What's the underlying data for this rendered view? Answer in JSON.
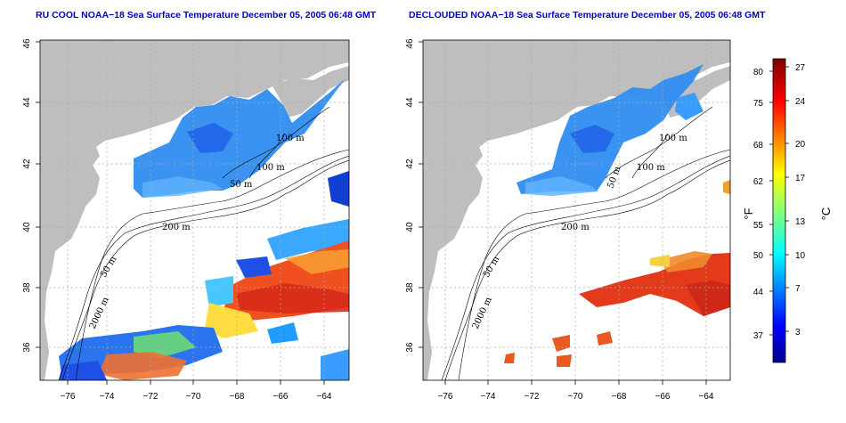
{
  "panels": [
    {
      "title": "RU COOL NOAA−18 Sea Surface Temperature December 05, 2005 06:48 GMT",
      "contour_labels": [
        "100 m",
        "100 m",
        "50 m",
        "200 m",
        "50 m",
        "2000 m"
      ]
    },
    {
      "title": "DECLOUDED NOAA−18 Sea Surface Temperature December 05, 2005 06:48 GMT",
      "contour_labels": [
        "100 m",
        "100 m",
        "50 m",
        "200 m",
        "50 m",
        "2000 m"
      ]
    }
  ],
  "axes": {
    "lon_ticks": [
      "−76",
      "−74",
      "−72",
      "−70",
      "−68",
      "−66",
      "−64"
    ],
    "lat_ticks": [
      "36",
      "38",
      "40",
      "42",
      "44",
      "46"
    ]
  },
  "colorbar": {
    "fahrenheit_unit": "°F",
    "celsius_unit": "°C",
    "fahrenheit_ticks": [
      "80",
      "75",
      "68",
      "62",
      "55",
      "50",
      "44",
      "37"
    ],
    "celsius_ticks": [
      "27",
      "24",
      "20",
      "17",
      "13",
      "10",
      "7",
      "3"
    ],
    "range_celsius": [
      0,
      28
    ],
    "colormap": "jet"
  },
  "colors": {
    "land": "#bebebe",
    "ocean_no_data": "#ffffff",
    "title": "#0000cc",
    "grid": "#aaaaaa"
  }
}
